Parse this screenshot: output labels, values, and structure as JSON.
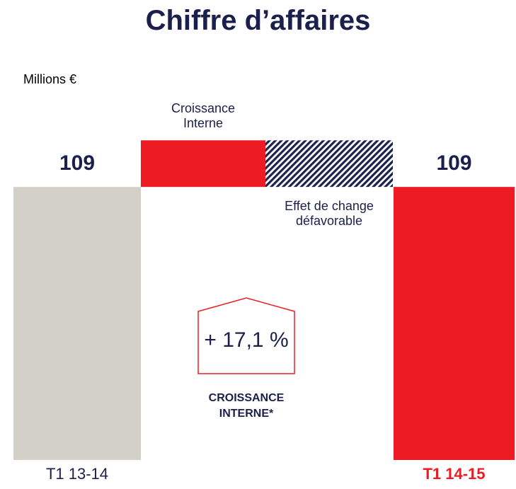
{
  "chart_data": {
    "type": "waterfall",
    "title": "Chiffre d’affaires",
    "unit_label": "Millions €",
    "categories": [
      "T1 13-14",
      "Croissance Interne",
      "Effet de change défavorable",
      "T1 14-15"
    ],
    "values": [
      109,
      18.6,
      -18.6,
      109
    ],
    "value_labels": [
      "109",
      null,
      null,
      "109"
    ],
    "totals": [
      true,
      false,
      false,
      true
    ],
    "colors": [
      "#d3d0c8",
      "#ed1c24",
      "#1c2150",
      "#ed1c24"
    ],
    "hatched": [
      false,
      false,
      true,
      false
    ],
    "annotation": {
      "value_text": "+ 17,1 %",
      "label": "CROISSANCE INTERNE*"
    }
  }
}
